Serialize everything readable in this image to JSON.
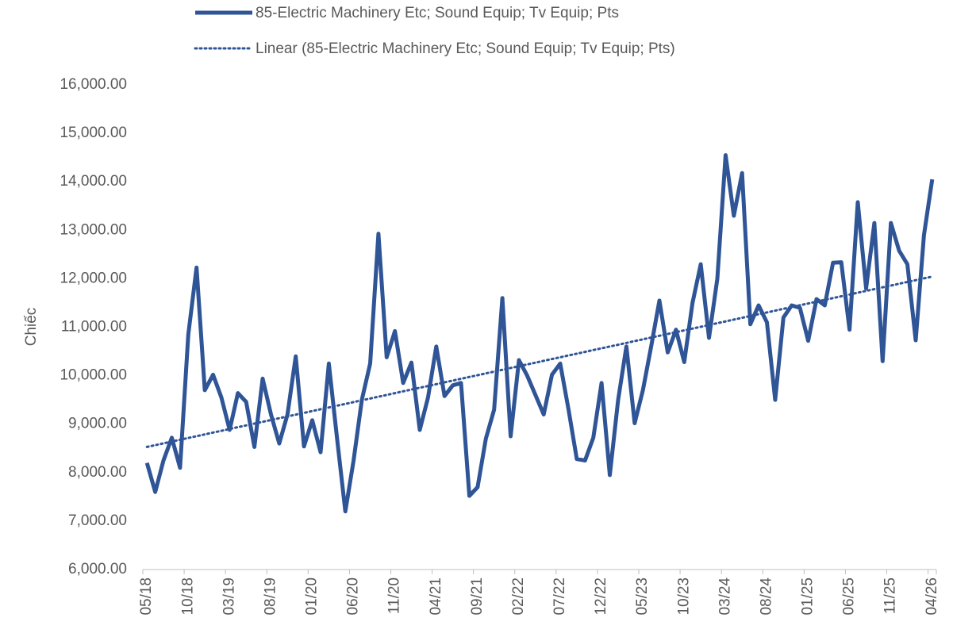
{
  "chart_data": {
    "type": "line",
    "ylabel": "Chiếc",
    "categories": [
      "05/18",
      null,
      null,
      null,
      null,
      "10/18",
      null,
      null,
      null,
      null,
      "03/19",
      null,
      null,
      null,
      null,
      "08/19",
      null,
      null,
      null,
      null,
      "01/20",
      null,
      null,
      null,
      null,
      "06/20",
      null,
      null,
      null,
      null,
      "11/20",
      null,
      null,
      null,
      null,
      "04/21",
      null,
      null,
      null,
      null,
      "09/21",
      null,
      null,
      null,
      null,
      "02/22",
      null,
      null,
      null,
      null,
      "07/22",
      null,
      null,
      null,
      null,
      "12/22",
      null,
      null,
      null,
      null,
      "05/23",
      null,
      null,
      null,
      null,
      "10/23",
      null,
      null,
      null,
      null,
      "03/24",
      null,
      null,
      null,
      null,
      "08/24",
      null,
      null,
      null,
      null,
      "01/25",
      null,
      null,
      null,
      null,
      "06/25",
      null,
      null,
      null,
      null,
      "11/25",
      null,
      null,
      null,
      null,
      "04/26"
    ],
    "series": [
      {
        "name": "85-Electric Machinery Etc; Sound Equip; Tv Equip; Pts",
        "color": "#2f5597",
        "style": "solid",
        "values": [
          8200,
          7600,
          8250,
          8720,
          8100,
          10850,
          12230,
          9700,
          10020,
          9550,
          8880,
          9640,
          9460,
          8530,
          9940,
          9200,
          8600,
          9200,
          10400,
          8540,
          9080,
          8420,
          10250,
          8700,
          7200,
          8250,
          9500,
          10250,
          12930,
          10380,
          10920,
          9850,
          10270,
          8880,
          9550,
          10600,
          9580,
          9800,
          9850,
          7520,
          7700,
          8700,
          9300,
          11600,
          8750,
          10320,
          10000,
          9600,
          9200,
          10020,
          10250,
          9300,
          8280,
          8250,
          8720,
          9850,
          7950,
          9500,
          10600,
          9020,
          9700,
          10600,
          11550,
          10480,
          10950,
          10280,
          11500,
          12300,
          10780,
          12000,
          14550,
          13300,
          14180,
          11060,
          11450,
          11100,
          9500,
          11200,
          11450,
          11400,
          10720,
          11580,
          11450,
          12330,
          12340,
          10950,
          13580,
          11800,
          13150,
          10300,
          13150,
          12580,
          12300,
          10730,
          12900,
          14050
        ]
      },
      {
        "name": "Linear (85-Electric Machinery Etc; Sound Equip; Tv Equip; Pts)",
        "color": "#2f5597",
        "style": "dotted",
        "values": [
          8530,
          8567,
          8604,
          8641,
          8678,
          8715,
          8752,
          8789,
          8826,
          8863,
          8900,
          8937,
          8974,
          9011,
          9048,
          9085,
          9122,
          9159,
          9196,
          9233,
          9270,
          9307,
          9344,
          9381,
          9418,
          9455,
          9492,
          9529,
          9566,
          9603,
          9640,
          9677,
          9714,
          9751,
          9788,
          9825,
          9862,
          9899,
          9936,
          9973,
          10010,
          10047,
          10084,
          10121,
          10158,
          10195,
          10232,
          10269,
          10306,
          10343,
          10380,
          10417,
          10454,
          10491,
          10528,
          10565,
          10602,
          10639,
          10676,
          10713,
          10750,
          10787,
          10824,
          10861,
          10898,
          10935,
          10972,
          11009,
          11046,
          11083,
          11120,
          11157,
          11194,
          11231,
          11268,
          11305,
          11342,
          11379,
          11416,
          11453,
          11490,
          11527,
          11564,
          11601,
          11638,
          11675,
          11712,
          11749,
          11786,
          11823,
          11860,
          11897,
          11934,
          11971,
          12008,
          12045
        ]
      }
    ],
    "ylim": [
      6000,
      16000
    ],
    "yticks": [
      {
        "value": 6000,
        "label": "6,000.00"
      },
      {
        "value": 7000,
        "label": "7,000.00"
      },
      {
        "value": 8000,
        "label": "8,000.00"
      },
      {
        "value": 9000,
        "label": "9,000.00"
      },
      {
        "value": 10000,
        "label": "10,000.00"
      },
      {
        "value": 11000,
        "label": "11,000.00"
      },
      {
        "value": 12000,
        "label": "12,000.00"
      },
      {
        "value": 13000,
        "label": "13,000.00"
      },
      {
        "value": 14000,
        "label": "14,000.00"
      },
      {
        "value": 15000,
        "label": "15,000.00"
      },
      {
        "value": 16000,
        "label": "16,000.00"
      }
    ],
    "grid": false,
    "legend": "top"
  }
}
